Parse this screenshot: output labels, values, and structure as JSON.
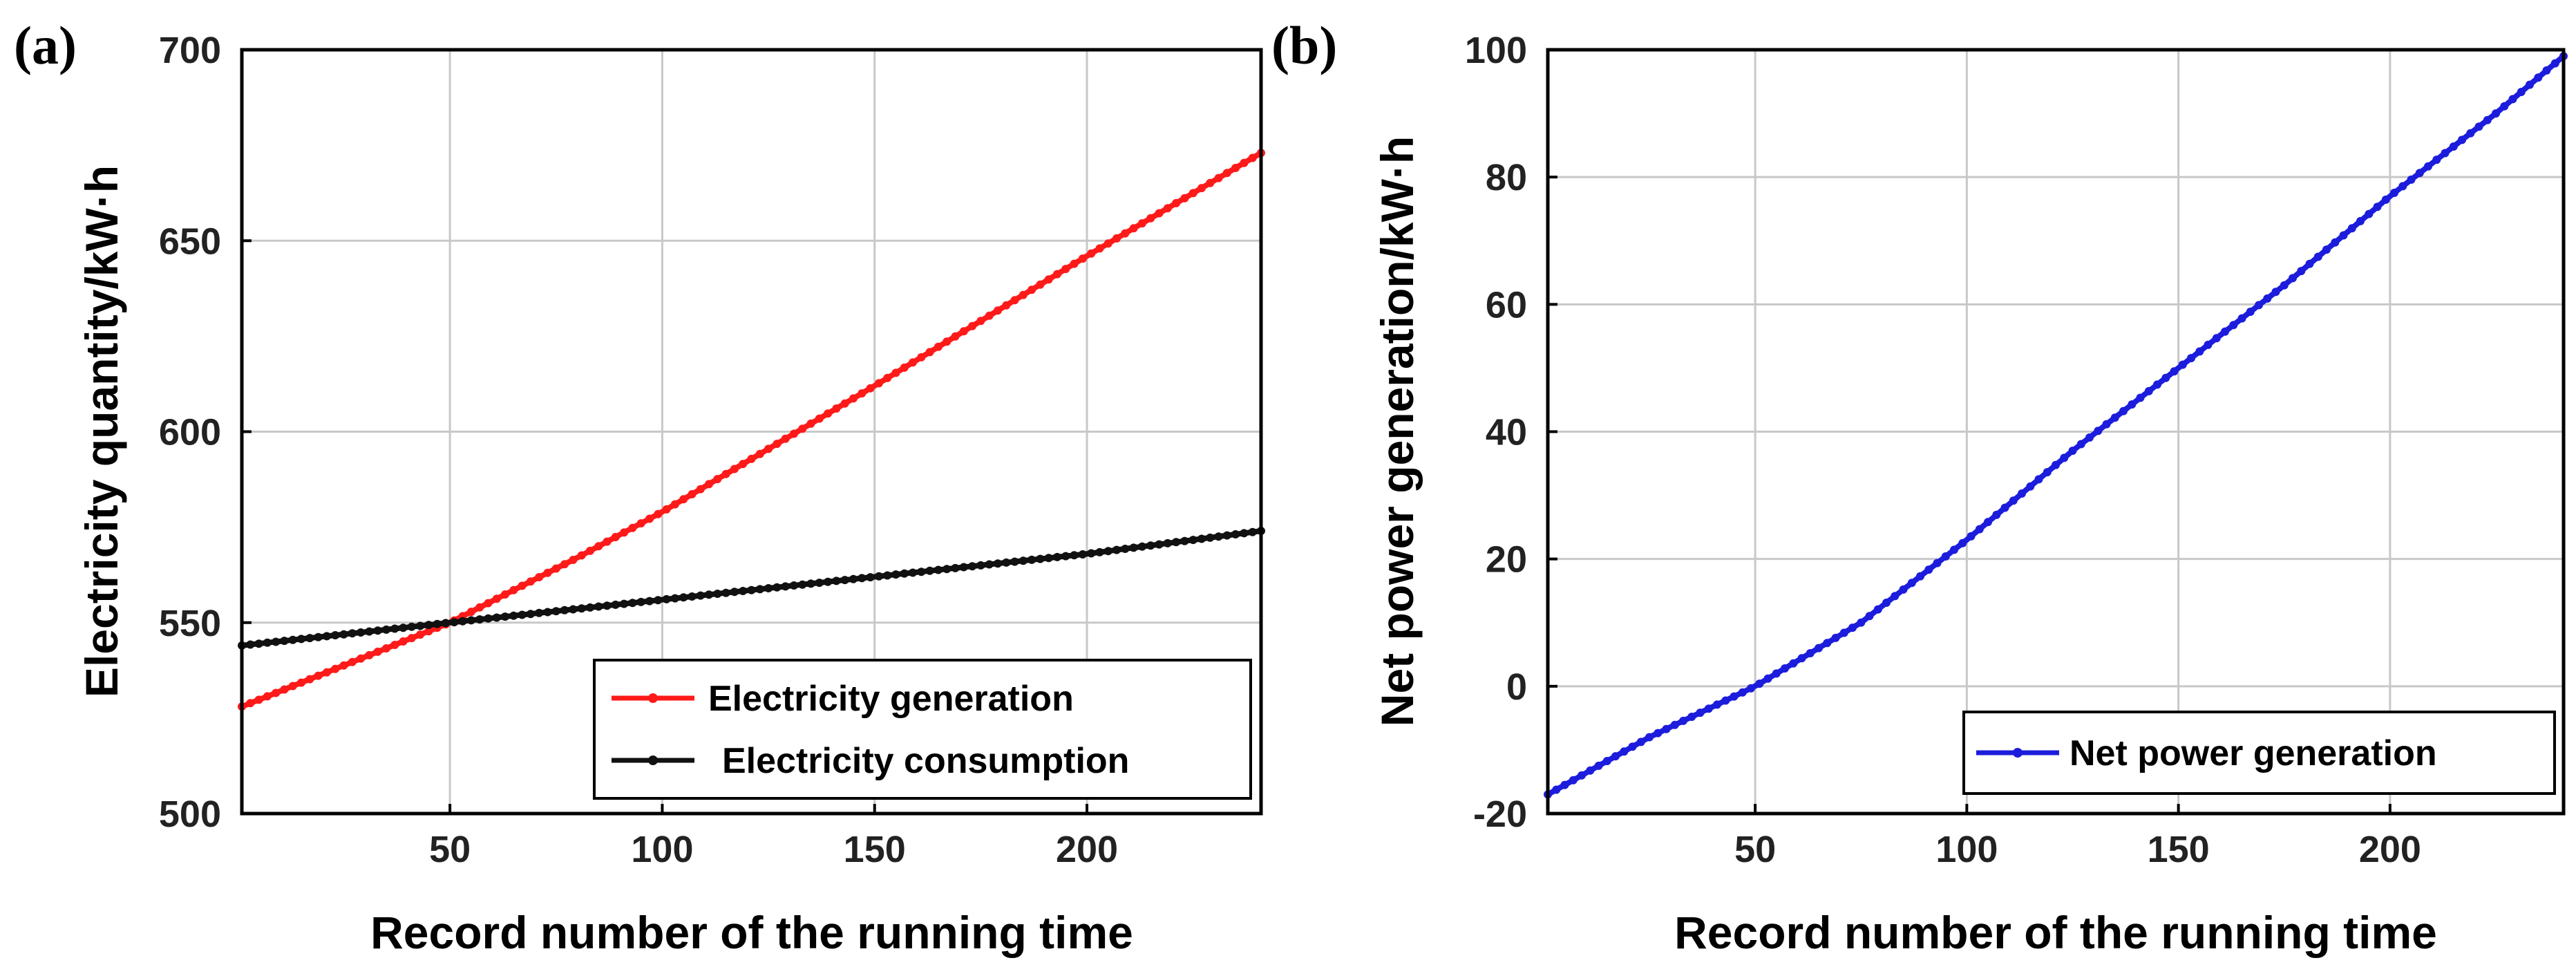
{
  "chart_data": [
    {
      "panel": "(a)",
      "type": "line",
      "title": "",
      "xlabel": "Record number of the running time",
      "ylabel": "Electricity quantity/kW·h",
      "xlim": [
        1,
        241
      ],
      "ylim": [
        500,
        700
      ],
      "xticks": [
        50,
        100,
        150,
        200
      ],
      "yticks": [
        500,
        550,
        600,
        650,
        700
      ],
      "grid": true,
      "legend_position": "bottom-right",
      "series": [
        {
          "name": "Electricity generation",
          "color": "#ff1a1a",
          "marker": "dot",
          "x": [
            1,
            50,
            80,
            100,
            150,
            200,
            241
          ],
          "values": [
            528,
            550,
            567,
            579,
            612,
            646,
            673
          ]
        },
        {
          "name": "Electricity consumption",
          "color": "#111111",
          "marker": "dot",
          "x": [
            1,
            50,
            100,
            150,
            200,
            241
          ],
          "values": [
            544,
            550,
            556,
            562,
            568,
            574
          ]
        }
      ]
    },
    {
      "panel": "(b)",
      "type": "line",
      "title": "",
      "xlabel": "Record number of the running time",
      "ylabel": "Net power generation/kW·h",
      "xlim": [
        1,
        241
      ],
      "ylim": [
        -20,
        100
      ],
      "xticks": [
        50,
        100,
        150,
        200
      ],
      "yticks": [
        -20,
        0,
        20,
        40,
        60,
        80,
        100
      ],
      "grid": true,
      "legend_position": "bottom-right",
      "series": [
        {
          "name": "Net power generation",
          "color": "#1c1cdc",
          "marker": "dot",
          "x": [
            1,
            25,
            50,
            75,
            100,
            125,
            150,
            175,
            200,
            225,
            241
          ],
          "values": [
            -17,
            -8,
            0,
            10,
            23,
            37,
            50,
            63,
            77,
            90,
            99
          ]
        }
      ]
    }
  ]
}
